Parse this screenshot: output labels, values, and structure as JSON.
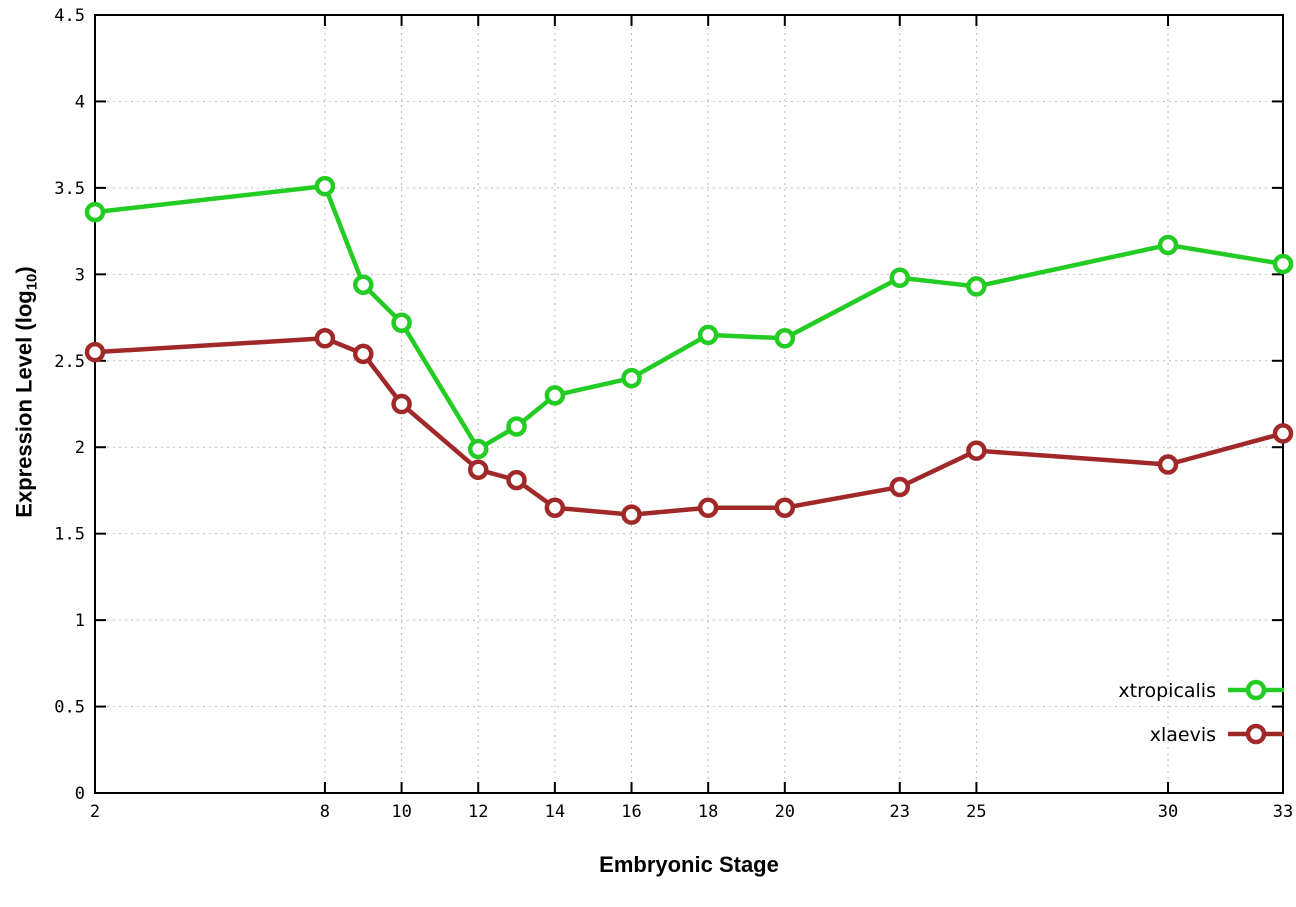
{
  "chart_data": {
    "type": "line",
    "title": "",
    "xlabel": "Embryonic Stage",
    "ylabel": "Expression Level (log10)",
    "ylabel_parts": {
      "prefix": "Expression Level (log",
      "sub": "10",
      "suffix": ")"
    },
    "x": [
      2,
      8,
      9,
      10,
      12,
      13,
      14,
      16,
      18,
      20,
      23,
      25,
      30,
      33
    ],
    "xtick_labels": [
      2,
      8,
      10,
      12,
      14,
      16,
      18,
      20,
      23,
      25,
      30,
      33
    ],
    "xlim": [
      2,
      33
    ],
    "ylim": [
      0,
      4.5
    ],
    "ytick_step": 0.5,
    "grid": true,
    "legend_position": "bottom-right",
    "series": [
      {
        "name": "xtropicalis",
        "color": "#22cc22",
        "values": [
          3.36,
          3.51,
          2.94,
          2.72,
          1.99,
          2.12,
          2.3,
          2.4,
          2.65,
          2.63,
          2.98,
          2.93,
          3.17,
          3.06
        ]
      },
      {
        "name": "xlaevis",
        "color": "#a02828",
        "values": [
          2.55,
          2.63,
          2.54,
          2.25,
          1.87,
          1.81,
          1.65,
          1.61,
          1.65,
          1.65,
          1.77,
          1.98,
          1.9,
          2.08
        ]
      }
    ]
  }
}
